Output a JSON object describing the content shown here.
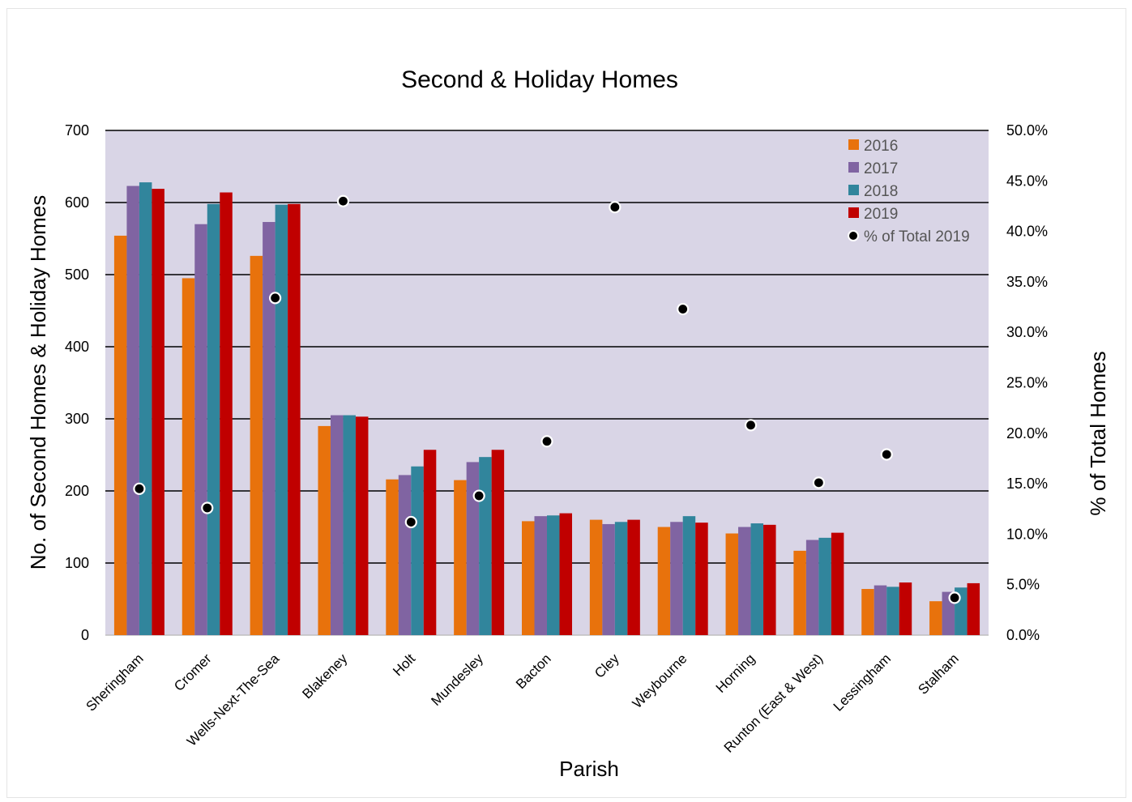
{
  "chart_data": {
    "type": "bar",
    "title": "Second & Holiday Homes",
    "xlabel": "Parish",
    "ylabel": "No. of Second Homes & Holiday Homes",
    "y2label": "% of Total Homes",
    "ylim": [
      0,
      700
    ],
    "y2lim": [
      0,
      0.5
    ],
    "yticks": [
      "0",
      "100",
      "200",
      "300",
      "400",
      "500",
      "600",
      "700"
    ],
    "y2ticks": [
      "0.0%",
      "5.0%",
      "10.0%",
      "15.0%",
      "20.0%",
      "25.0%",
      "30.0%",
      "35.0%",
      "40.0%",
      "45.0%",
      "50.0%"
    ],
    "grid": true,
    "legend_position": "top-right",
    "categories": [
      "Sheringham",
      "Cromer",
      "Wells-Next-The-Sea",
      "Blakeney",
      "Holt",
      "Mundesley",
      "Bacton",
      "Cley",
      "Weybourne",
      "Horning",
      "Runton (East & West)",
      "Lessingham",
      "Stalham"
    ],
    "series": [
      {
        "name": "2016",
        "color": "#e8720c",
        "values": [
          554,
          495,
          526,
          290,
          216,
          215,
          158,
          160,
          150,
          141,
          117,
          64,
          47
        ]
      },
      {
        "name": "2017",
        "color": "#8064a2",
        "values": [
          623,
          570,
          573,
          305,
          222,
          240,
          165,
          154,
          157,
          150,
          132,
          69,
          60
        ]
      },
      {
        "name": "2018",
        "color": "#31859c",
        "values": [
          628,
          598,
          597,
          305,
          234,
          247,
          166,
          157,
          165,
          155,
          135,
          67,
          66
        ]
      },
      {
        "name": "2019",
        "color": "#c00000",
        "values": [
          619,
          614,
          598,
          303,
          257,
          257,
          169,
          160,
          156,
          153,
          142,
          73,
          72
        ]
      }
    ],
    "secondary_series": {
      "name": "% of Total 2019",
      "type": "scatter",
      "axis": "right",
      "values": [
        0.145,
        0.126,
        0.334,
        0.43,
        0.112,
        0.138,
        0.192,
        0.424,
        0.323,
        0.208,
        0.151,
        0.179,
        0.037
      ]
    },
    "plot_background": "#d9d5e6"
  }
}
